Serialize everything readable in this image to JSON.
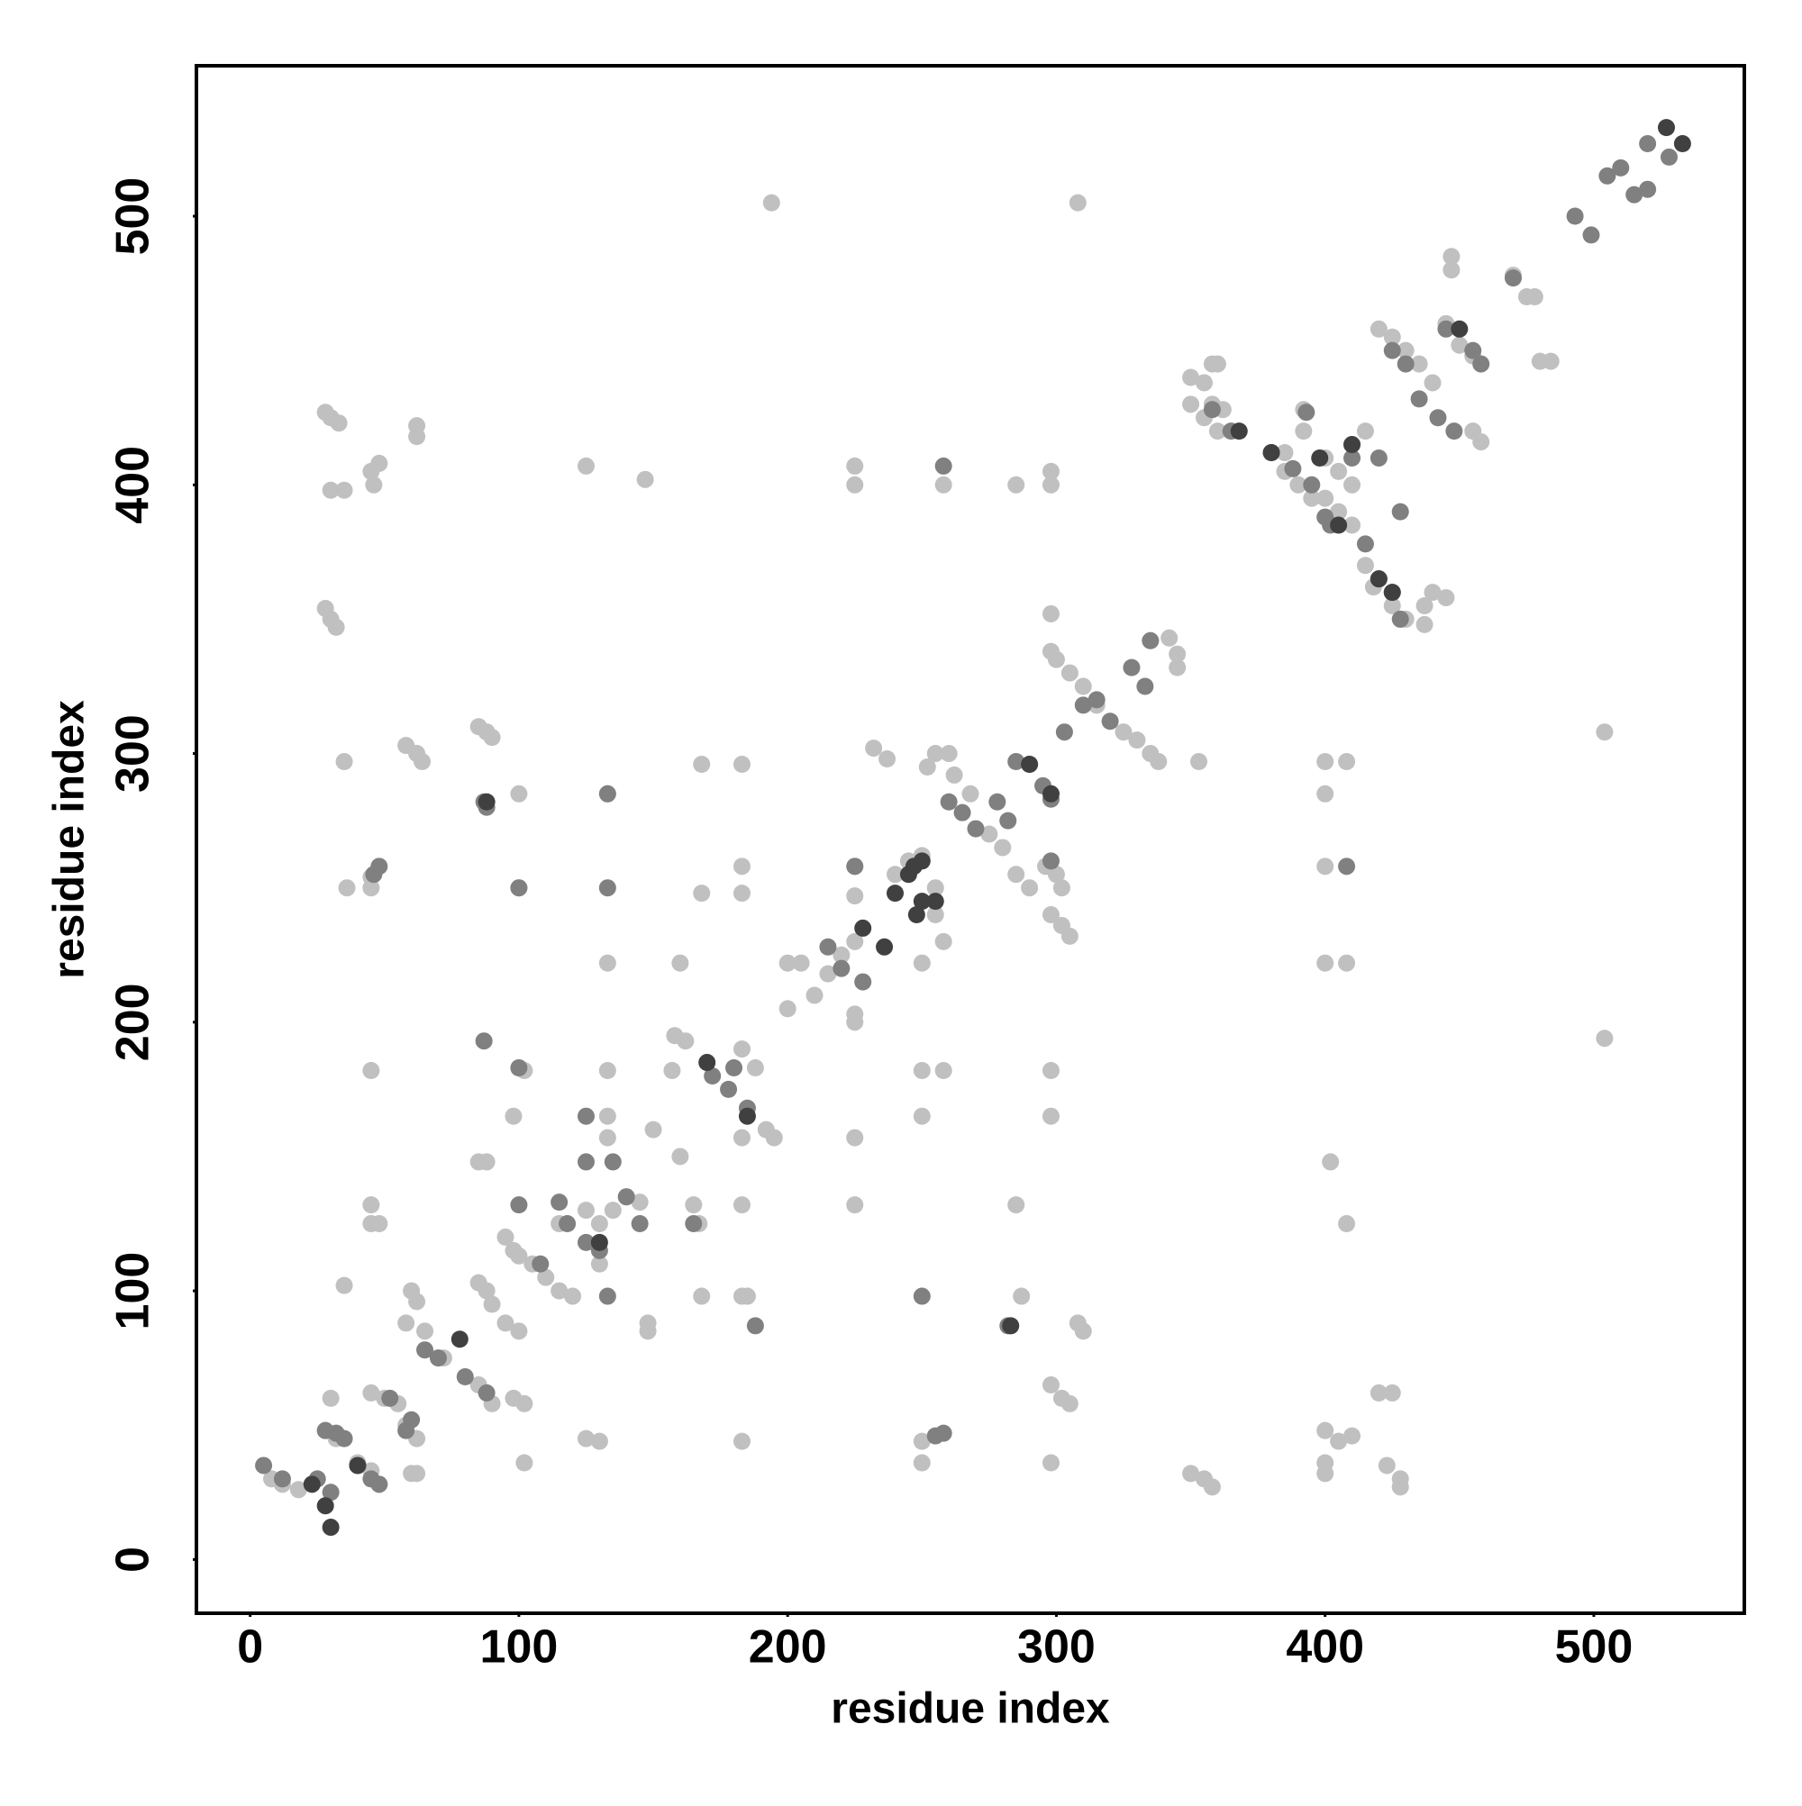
{
  "chart_data": {
    "type": "scatter",
    "xlabel": "residue index",
    "ylabel": "residue index",
    "xlim": [
      -20,
      556
    ],
    "ylim": [
      -20,
      556
    ],
    "xticks": [
      0,
      100,
      200,
      300,
      400,
      500
    ],
    "yticks": [
      0,
      100,
      200,
      300,
      400,
      500
    ],
    "grid": false,
    "series": [
      {
        "color": "#c0c0c0",
        "x": [
          8,
          12,
          18,
          28,
          32,
          30,
          40,
          45,
          48,
          45,
          50,
          55,
          58,
          62,
          60,
          62,
          58,
          60,
          62,
          65,
          72,
          85,
          88,
          90,
          85,
          90,
          95,
          100,
          98,
          102,
          102,
          100,
          105,
          110,
          115,
          120,
          125,
          130,
          135,
          140,
          145,
          130,
          115,
          98,
          95,
          45,
          48,
          45,
          35,
          85,
          88,
          98,
          100,
          102,
          45,
          36,
          45,
          45,
          35,
          58,
          62,
          64,
          85,
          88,
          90,
          28,
          30,
          33,
          48,
          45,
          46,
          30,
          35,
          28,
          30,
          32,
          62,
          62,
          100,
          100,
          125,
          147,
          133,
          133,
          133,
          133,
          133,
          125,
          130,
          150,
          160,
          158,
          162,
          157,
          165,
          167,
          183,
          183,
          183,
          188,
          192,
          195,
          160,
          168,
          183,
          183,
          168,
          183,
          183,
          183,
          185,
          148,
          148,
          168,
          194,
          200,
          205,
          200,
          210,
          215,
          220,
          225,
          225,
          225,
          225,
          225,
          225,
          225,
          225,
          225,
          232,
          237,
          240,
          245,
          250,
          255,
          255,
          258,
          250,
          250,
          250,
          258,
          252,
          255,
          260,
          262,
          268,
          275,
          280,
          285,
          290,
          258,
          250,
          250,
          285,
          285,
          287,
          298,
          298,
          298,
          298,
          300,
          305,
          310,
          315,
          325,
          330,
          335,
          338,
          342,
          335,
          345,
          345,
          296,
          300,
          302,
          298,
          302,
          305,
          298,
          298,
          298,
          302,
          305,
          308,
          310,
          298,
          308,
          350,
          355,
          358,
          360,
          350,
          355,
          360,
          358,
          362,
          353,
          350,
          355,
          358,
          385,
          392,
          392,
          385,
          390,
          395,
          400,
          405,
          410,
          400,
          405,
          410,
          415,
          410,
          415,
          418,
          425,
          430,
          437,
          437,
          440,
          445,
          400,
          408,
          400,
          400,
          400,
          408,
          402,
          408,
          400,
          405,
          410,
          400,
          400,
          420,
          425,
          423,
          428,
          428,
          420,
          425,
          430,
          435,
          440,
          447,
          447,
          445,
          450,
          455,
          455,
          458,
          470,
          475,
          478,
          480,
          484,
          504,
          504
        ],
        "y": [
          30,
          28,
          26,
          48,
          45,
          60,
          36,
          33,
          28,
          62,
          60,
          58,
          50,
          45,
          32,
          32,
          88,
          100,
          96,
          85,
          75,
          103,
          100,
          95,
          65,
          58,
          88,
          85,
          60,
          58,
          36,
          113,
          110,
          105,
          100,
          98,
          130,
          125,
          130,
          135,
          133,
          110,
          125,
          115,
          120,
          125,
          125,
          132,
          102,
          148,
          148,
          165,
          183,
          182,
          182,
          250,
          250,
          254,
          297,
          303,
          300,
          297,
          310,
          308,
          306,
          427,
          425,
          423,
          408,
          405,
          400,
          398,
          398,
          354,
          350,
          347,
          422,
          418,
          285,
          250,
          407,
          402,
          285,
          222,
          182,
          165,
          157,
          45,
          44,
          160,
          150,
          195,
          193,
          182,
          132,
          125,
          157,
          132,
          190,
          183,
          160,
          157,
          222,
          248,
          258,
          248,
          296,
          296,
          44,
          98,
          98,
          85,
          88,
          98,
          505,
          222,
          222,
          205,
          210,
          218,
          225,
          230,
          258,
          247,
          203,
          200,
          157,
          132,
          407,
          400,
          302,
          298,
          255,
          260,
          262,
          250,
          240,
          230,
          222,
          182,
          165,
          182,
          295,
          300,
          300,
          292,
          285,
          270,
          265,
          255,
          250,
          400,
          36,
          44,
          400,
          132,
          98,
          405,
          400,
          352,
          338,
          335,
          330,
          325,
          318,
          308,
          305,
          300,
          297,
          343,
          342,
          337,
          332,
          258,
          255,
          250,
          240,
          236,
          232,
          182,
          165,
          65,
          60,
          58,
          88,
          85,
          36,
          505,
          440,
          438,
          445,
          445,
          430,
          425,
          420,
          430,
          428,
          297,
          32,
          30,
          27,
          412,
          428,
          420,
          405,
          400,
          395,
          410,
          405,
          400,
          395,
          390,
          415,
          420,
          385,
          370,
          362,
          355,
          350,
          348,
          355,
          360,
          358,
          297,
          297,
          285,
          258,
          222,
          222,
          148,
          125,
          48,
          44,
          46,
          36,
          32,
          62,
          62,
          35,
          30,
          27,
          458,
          455,
          450,
          445,
          438,
          485,
          480,
          460,
          452,
          448,
          420,
          416,
          478,
          470,
          470,
          446,
          446,
          308,
          194
        ]
      },
      {
        "color": "#808080",
        "x": [
          5,
          12,
          25,
          30,
          28,
          32,
          35,
          40,
          45,
          48,
          48,
          46,
          52,
          60,
          58,
          65,
          70,
          80,
          88,
          87,
          87,
          88,
          100,
          100,
          100,
          108,
          115,
          118,
          125,
          125,
          125,
          130,
          133,
          133,
          133,
          135,
          140,
          145,
          165,
          172,
          178,
          185,
          180,
          188,
          215,
          220,
          228,
          225,
          250,
          255,
          258,
          258,
          260,
          265,
          270,
          278,
          282,
          285,
          290,
          295,
          298,
          298,
          303,
          310,
          315,
          320,
          328,
          333,
          335,
          282,
          358,
          365,
          380,
          388,
          393,
          395,
          400,
          402,
          408,
          410,
          415,
          420,
          425,
          428,
          428,
          420,
          425,
          430,
          435,
          442,
          448,
          445,
          455,
          458,
          470,
          493,
          499,
          505,
          510,
          515,
          520,
          520,
          528
        ],
        "y": [
          35,
          30,
          30,
          25,
          48,
          47,
          45,
          35,
          30,
          28,
          258,
          255,
          60,
          52,
          48,
          78,
          75,
          68,
          62,
          193,
          282,
          280,
          132,
          250,
          183,
          110,
          133,
          125,
          165,
          148,
          118,
          115,
          98,
          250,
          285,
          148,
          135,
          125,
          125,
          180,
          175,
          168,
          183,
          87,
          228,
          220,
          215,
          258,
          98,
          46,
          47,
          407,
          282,
          278,
          272,
          282,
          275,
          297,
          296,
          288,
          283,
          260,
          308,
          318,
          320,
          312,
          332,
          325,
          342,
          87,
          428,
          420,
          412,
          406,
          427,
          400,
          388,
          385,
          258,
          410,
          378,
          365,
          360,
          350,
          390,
          410,
          450,
          445,
          432,
          425,
          420,
          458,
          450,
          445,
          477,
          500,
          493,
          515,
          518,
          508,
          510,
          527,
          522
        ]
      },
      {
        "color": "#404040",
        "x": [
          30,
          28,
          23,
          40,
          78,
          88,
          130,
          170,
          185,
          236,
          240,
          245,
          250,
          248,
          250,
          255,
          283,
          290,
          298,
          368,
          380,
          398,
          405,
          410,
          420,
          425,
          450,
          527,
          533,
          228,
          247
        ],
        "y": [
          12,
          20,
          28,
          35,
          82,
          282,
          118,
          185,
          165,
          228,
          248,
          255,
          245,
          240,
          260,
          245,
          87,
          296,
          285,
          420,
          412,
          410,
          385,
          415,
          365,
          360,
          458,
          533,
          527,
          235,
          258
        ]
      }
    ]
  }
}
